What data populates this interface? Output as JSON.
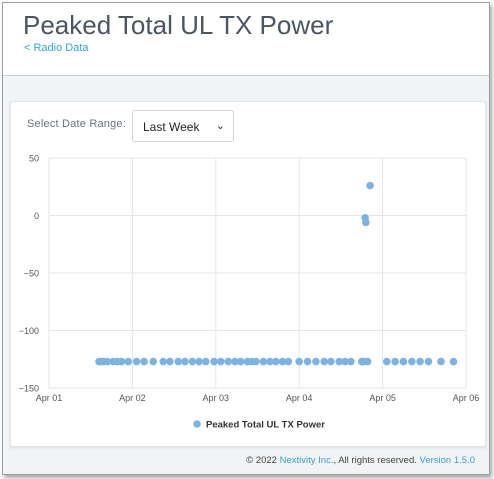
{
  "header": {
    "title": "Peaked Total UL TX Power",
    "back_link": "< Radio Data"
  },
  "controls": {
    "range_label": "Select Date Range:",
    "range_value": "Last Week",
    "chevron_icon": "chevron-down-icon"
  },
  "chart_data": {
    "type": "scatter",
    "x_tick_labels": [
      "Apr 01",
      "Apr 02",
      "Apr 03",
      "Apr 04",
      "Apr 05",
      "Apr 06"
    ],
    "y_tick_labels": [
      "50",
      "0",
      "−50",
      "−100",
      "−150"
    ],
    "ylim": [
      -150,
      50
    ],
    "xlim_days": [
      1,
      6
    ],
    "grid": true,
    "legend": "bottom",
    "series": [
      {
        "name": "Peaked Total UL TX Power",
        "color": "#7eb2e0",
        "x_day": [
          1.6,
          1.62,
          1.65,
          1.7,
          1.77,
          1.82,
          1.87,
          1.95,
          2.05,
          2.14,
          2.25,
          2.37,
          2.45,
          2.55,
          2.63,
          2.72,
          2.8,
          2.88,
          2.98,
          3.06,
          3.15,
          3.23,
          3.3,
          3.38,
          3.43,
          3.48,
          3.57,
          3.65,
          3.72,
          3.8,
          3.87,
          4.0,
          4.1,
          4.2,
          4.3,
          4.38,
          4.48,
          4.55,
          4.62,
          4.75,
          4.76,
          4.77,
          4.79,
          4.8,
          4.82,
          4.85,
          5.05,
          5.15,
          5.25,
          5.35,
          5.45,
          5.55,
          5.7,
          5.85
        ],
        "y": [
          -127,
          -127,
          -127,
          -127,
          -127,
          -127,
          -127,
          -127,
          -127,
          -127,
          -127,
          -127,
          -127,
          -127,
          -127,
          -127,
          -127,
          -127,
          -127,
          -127,
          -127,
          -127,
          -127,
          -127,
          -127,
          -127,
          -127,
          -127,
          -127,
          -127,
          -127,
          -127,
          -127,
          -127,
          -127,
          -127,
          -127,
          -127,
          -127,
          -127,
          -127,
          -127,
          -2,
          -6,
          -127,
          26,
          -127,
          -127,
          -127,
          -127,
          -127,
          -127,
          -127,
          -127
        ]
      }
    ]
  },
  "footer": {
    "copyright_prefix": "© 2022",
    "company": "Nextivity Inc.",
    "rights": ", All rights reserved.",
    "version": "Version 1.5.0"
  }
}
